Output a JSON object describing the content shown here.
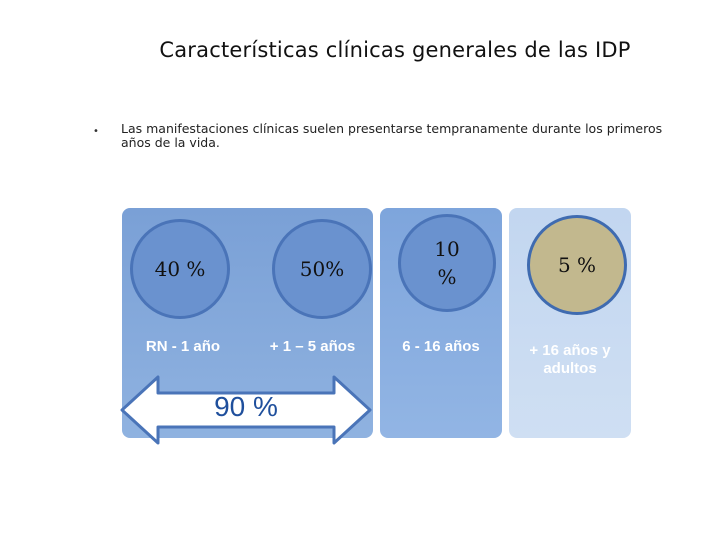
{
  "title": "Características clínicas generales de las IDP",
  "bullet": {
    "marker": "•",
    "text": "Las manifestaciones clínicas suelen presentarse tempranamente durante los primeros años de la vida."
  },
  "groups": [
    {
      "percent": "40 %",
      "age": "RN - 1 año"
    },
    {
      "percent": "50%",
      "age": "+ 1 – 5 años"
    },
    {
      "percent_line1": "10",
      "percent_line2": "%",
      "age": "6 - 16 años"
    },
    {
      "percent": "5 %",
      "age_line1": "+ 16 años y",
      "age_line2": "adultos"
    }
  ],
  "arrow": {
    "label": "90 %"
  },
  "colors": {
    "column_blue": "#8fb2e0",
    "column_light": "#cfdff3",
    "circle_blue": "#6a92cf",
    "circle_tan": "#c2b88e",
    "arrow_border": "#4a74b8",
    "arrow_text": "#1f4f9c"
  }
}
